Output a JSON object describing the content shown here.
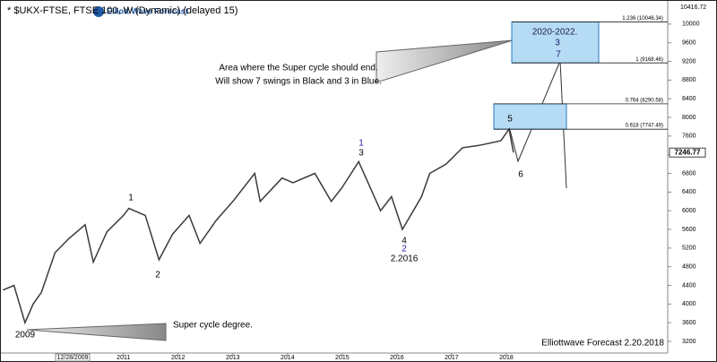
{
  "chart_data": {
    "type": "line",
    "title": "* $UKX-FTSE, FTSE 100, W (Dynamic) (delayed 15)",
    "logo": "Elliott Wave Forecast",
    "xlim": [
      2008.76,
      2020.95
    ],
    "xticks": [
      2011,
      2012,
      2013,
      2014,
      2015,
      2016,
      2017,
      2018
    ],
    "x_cursor_label": "12/28/2009",
    "ylim": [
      2950,
      10420
    ],
    "yticks": [
      3200,
      3600,
      4000,
      4400,
      4800,
      5200,
      5600,
      6000,
      6400,
      6800,
      7200,
      7600,
      8000,
      8400,
      8800,
      9200,
      9600,
      10000
    ],
    "y_top_label": 10416.72,
    "last_price": 7246.77,
    "series": [
      {
        "name": "$UKX-FTSE",
        "color": "#3a3a3a",
        "x": [
          2008.8,
          2009.0,
          2009.2,
          2009.35,
          2009.5,
          2009.75,
          2010.0,
          2010.3,
          2010.45,
          2010.7,
          2011.0,
          2011.1,
          2011.4,
          2011.65,
          2011.9,
          2012.2,
          2012.4,
          2012.7,
          2013.0,
          2013.4,
          2013.5,
          2013.9,
          2014.1,
          2014.5,
          2014.8,
          2015.0,
          2015.3,
          2015.7,
          2015.9,
          2016.1,
          2016.45,
          2016.6,
          2016.9,
          2017.2,
          2017.5,
          2017.9,
          2018.05,
          2018.13
        ],
        "values": [
          4300,
          4400,
          3600,
          4000,
          4250,
          5100,
          5400,
          5700,
          4900,
          5550,
          5900,
          6050,
          5900,
          4950,
          5500,
          5900,
          5300,
          5800,
          6200,
          6800,
          6200,
          6700,
          6600,
          6800,
          6200,
          6500,
          7050,
          6000,
          6300,
          5600,
          6300,
          6800,
          7000,
          7350,
          7400,
          7500,
          7750,
          7246.77
        ]
      }
    ],
    "fib_levels": [
      {
        "value": 7747.49,
        "label": "0.618 (7747.49)"
      },
      {
        "value": 8290.58,
        "label": "0.764 (8290.58)"
      },
      {
        "value": 9168.46,
        "label": "1 (9168.46)"
      },
      {
        "value": 10046.34,
        "label": "1.236 (10046.34)"
      }
    ],
    "annotations": [
      {
        "text": "Area where the Super cycle should end.",
        "color": "#000000"
      },
      {
        "text": "Will show 7 swings in Black and 3 in Blue.",
        "color": "#000000"
      },
      {
        "text": "2020-2022.",
        "color": "#1a1a4e"
      },
      {
        "text": "3",
        "color": "#1a1a6e"
      },
      {
        "text": "7",
        "color": "#1a1a6e"
      },
      {
        "text": "5",
        "color": "#000000"
      },
      {
        "text": "6",
        "color": "#000000"
      },
      {
        "text": "1",
        "color": "#1c1ca8"
      },
      {
        "text": "3",
        "color": "#000000"
      },
      {
        "text": "1",
        "color": "#000000"
      },
      {
        "text": "2",
        "color": "#000000"
      },
      {
        "text": "4",
        "color": "#000000"
      },
      {
        "text": "2",
        "color": "#1c1ca8"
      },
      {
        "text": "2.2016",
        "color": "#000000"
      },
      {
        "text": "2009",
        "color": "#000000"
      },
      {
        "text": "Super cycle degree.",
        "color": "#000000"
      },
      {
        "text": "Elliottwave Forecast  2.20.2018",
        "color": "#000000"
      }
    ]
  }
}
